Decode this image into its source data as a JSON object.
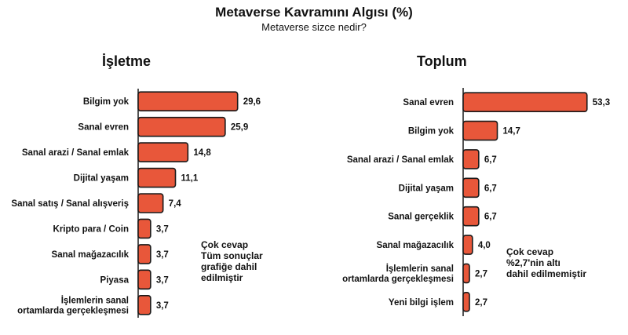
{
  "title": "Metaverse Kavramını Algısı (%)",
  "subtitle": "Metaverse sizce nedir?",
  "bar_color": "#e8573a",
  "bar_stroke": "#1a1a1a",
  "chart_data": [
    {
      "type": "bar",
      "orientation": "horizontal",
      "title": "İşletme",
      "categories": [
        "Bilgim yok",
        "Sanal evren",
        "Sanal arazi / Sanal emlak",
        "Dijital yaşam",
        "Sanal satış / Sanal alışveriş",
        "Kripto para / Coin",
        "Sanal mağazacılık",
        "Piyasa",
        "İşlemlerin sanal\nortamlarda gerçekleşmesi"
      ],
      "values": [
        29.6,
        25.9,
        14.8,
        11.1,
        7.4,
        3.7,
        3.7,
        3.7,
        3.7
      ],
      "value_labels": [
        "29,6",
        "25,9",
        "14,8",
        "11,1",
        "7,4",
        "3,7",
        "3,7",
        "3,7",
        "3,7"
      ],
      "note": "Çok cevap\nTüm sonuçlar\ngrafiğe dahil\nedilmiştir"
    },
    {
      "type": "bar",
      "orientation": "horizontal",
      "title": "Toplum",
      "categories": [
        "Sanal evren",
        "Bilgim yok",
        "Sanal arazi / Sanal emlak",
        "Dijital yaşam",
        "Sanal gerçeklik",
        "Sanal mağazacılık",
        "İşlemlerin sanal\nortamlarda gerçekleşmesi",
        "Yeni bilgi işlem"
      ],
      "values": [
        53.3,
        14.7,
        6.7,
        6.7,
        6.7,
        4.0,
        2.7,
        2.7
      ],
      "value_labels": [
        "53,3",
        "14,7",
        "6,7",
        "6,7",
        "6,7",
        "4,0",
        "2,7",
        "2,7"
      ],
      "note": "Çok cevap\n%2,7'nin altı\ndahil edilmemiştir"
    }
  ]
}
